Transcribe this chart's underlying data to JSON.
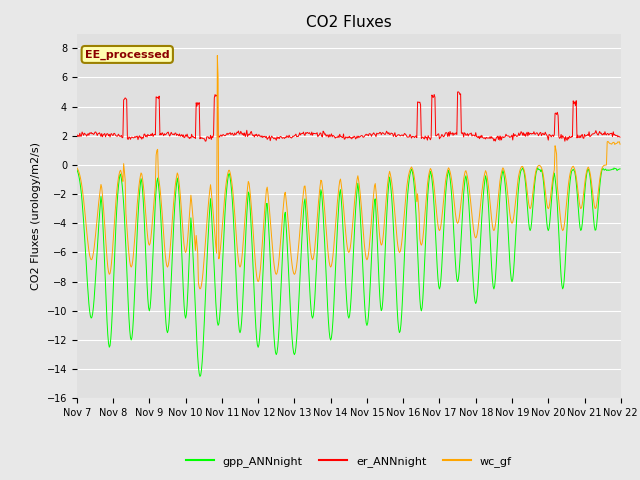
{
  "title": "CO2 Fluxes",
  "ylabel": "CO2 Fluxes (urology/m2/s)",
  "ylim": [
    -16,
    9
  ],
  "yticks": [
    -16,
    -14,
    -12,
    -10,
    -8,
    -6,
    -4,
    -2,
    0,
    2,
    4,
    6,
    8
  ],
  "colors": {
    "gpp": "#00FF00",
    "er": "#FF0000",
    "wc": "#FFA500",
    "fig_bg": "#E8E8E8",
    "plot_bg": "#E0E0E0",
    "grid": "#FFFFFF"
  },
  "legend_entries": [
    "gpp_ANNnight",
    "er_ANNnight",
    "wc_gf"
  ],
  "inset_label": "EE_processed",
  "title_fontsize": 11,
  "axis_fontsize": 8,
  "tick_fontsize": 7,
  "line_width": 0.7,
  "n_points": 720,
  "days": 15
}
